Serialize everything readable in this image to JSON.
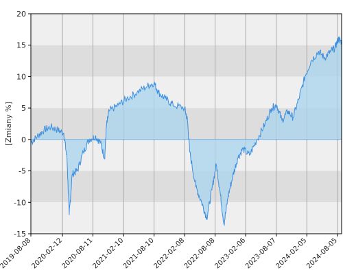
{
  "chart_data": {
    "type": "area",
    "title": "",
    "xlabel": "",
    "ylabel": "[Zmiany %]",
    "ylim": [
      -15,
      20
    ],
    "xlim": [
      "2019-08-08",
      "2024-08-30"
    ],
    "grid": true,
    "y_ticks": [
      20,
      15,
      10,
      5,
      0,
      -5,
      -10,
      -15
    ],
    "y_tick_labels": [
      "20",
      "15",
      "10",
      "5",
      "0",
      "-5",
      "-10",
      "-15"
    ],
    "x_ticks": [
      "2019-08-08",
      "2020-02-12",
      "2020-08-11",
      "2021-02-10",
      "2021-08-10",
      "2022-02-08",
      "2022-08-08",
      "2023-02-06",
      "2023-08-07",
      "2024-02-05",
      "2024-08-05"
    ],
    "colors": {
      "line": "#3d8fe0",
      "fill": "#a8d4ec",
      "band_light": "#efefef",
      "band_dark": "#dddddd",
      "vgrid": "#aaaaaa",
      "axis": "#000000"
    },
    "series": [
      {
        "x": [
          "2019-08-08",
          "2019-09-15",
          "2019-10-25",
          "2019-12-05",
          "2020-01-15",
          "2020-02-20",
          "2020-03-10",
          "2020-03-23",
          "2020-04-10",
          "2020-05-10",
          "2020-06-15",
          "2020-07-20",
          "2020-08-25",
          "2020-09-25",
          "2020-10-20",
          "2020-10-30",
          "2020-11-15",
          "2021-01-10",
          "2021-03-01",
          "2021-05-01",
          "2021-07-01",
          "2021-08-10",
          "2021-09-05",
          "2021-10-15",
          "2021-12-01",
          "2022-02-08",
          "2022-02-25",
          "2022-03-10",
          "2022-04-15",
          "2022-05-20",
          "2022-06-20",
          "2022-07-20",
          "2022-08-15",
          "2022-09-05",
          "2022-09-30",
          "2022-10-25",
          "2022-11-20",
          "2022-12-20",
          "2023-01-20",
          "2023-03-01",
          "2023-04-15",
          "2023-06-01",
          "2023-07-10",
          "2023-08-10",
          "2023-09-10",
          "2023-10-15",
          "2023-11-15",
          "2023-12-20",
          "2024-01-25",
          "2024-03-01",
          "2024-04-15",
          "2024-05-20",
          "2024-06-25",
          "2024-07-20",
          "2024-08-10",
          "2024-08-30"
        ],
        "y": [
          -0.5,
          0.5,
          1.5,
          2.0,
          1.5,
          1.0,
          -3.0,
          -12.0,
          -5.5,
          -5.0,
          -2.0,
          0.0,
          0.5,
          -0.5,
          -3.0,
          2.0,
          4.5,
          5.5,
          6.5,
          7.5,
          8.5,
          9.0,
          7.5,
          6.5,
          5.5,
          5.0,
          3.0,
          -2.0,
          -7.5,
          -10.0,
          -12.5,
          -8.0,
          -4.0,
          -8.0,
          -13.5,
          -9.0,
          -6.0,
          -3.0,
          -1.5,
          -2.5,
          0.0,
          2.5,
          5.0,
          5.5,
          3.0,
          4.5,
          3.5,
          6.5,
          10.0,
          12.5,
          14.0,
          13.0,
          14.0,
          14.5,
          16.0,
          15.5
        ]
      }
    ]
  }
}
